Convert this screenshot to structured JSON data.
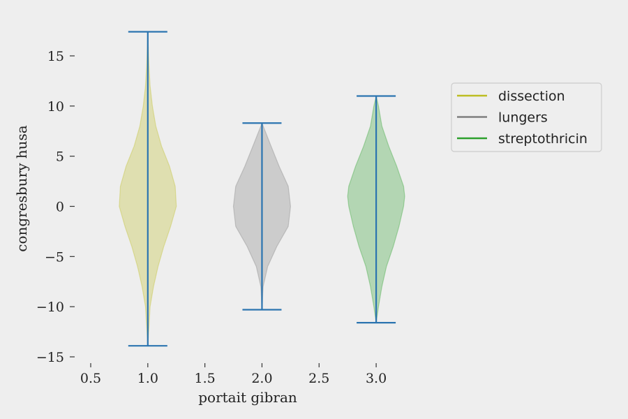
{
  "chart_data": {
    "type": "violin",
    "xlabel": "portait gibran",
    "ylabel": "congresbury husa",
    "xlim": [
      0.5,
      3.25
    ],
    "ylim": [
      -15,
      18
    ],
    "x_ticks": [
      "0.5",
      "1.0",
      "1.5",
      "2.0",
      "2.5",
      "3.0"
    ],
    "y_ticks": [
      "15",
      "10",
      "5",
      "0",
      "−5",
      "−10",
      "−15"
    ],
    "grid": false,
    "legend_position": "upper-right outside",
    "extrema_color": "#2b74b0",
    "series": [
      {
        "name": "dissection",
        "position": 1.0,
        "color": "#bcbd22",
        "min": -13.9,
        "max": 17.4,
        "profile": [
          [
            -13.9,
            0.0
          ],
          [
            -12,
            0.01
          ],
          [
            -10,
            0.02
          ],
          [
            -8,
            0.05
          ],
          [
            -6,
            0.09
          ],
          [
            -4,
            0.14
          ],
          [
            -2,
            0.2
          ],
          [
            0,
            0.25
          ],
          [
            2,
            0.24
          ],
          [
            4,
            0.19
          ],
          [
            6,
            0.12
          ],
          [
            8,
            0.07
          ],
          [
            10,
            0.04
          ],
          [
            12,
            0.02
          ],
          [
            14,
            0.01
          ],
          [
            17.4,
            0.0
          ]
        ]
      },
      {
        "name": "lungers",
        "position": 2.0,
        "color": "#7f7f7f",
        "min": -10.3,
        "max": 8.3,
        "profile": [
          [
            -10.3,
            0.0
          ],
          [
            -8,
            0.01
          ],
          [
            -6,
            0.05
          ],
          [
            -4,
            0.13
          ],
          [
            -2,
            0.23
          ],
          [
            0,
            0.25
          ],
          [
            2,
            0.23
          ],
          [
            4,
            0.15
          ],
          [
            6,
            0.08
          ],
          [
            8.3,
            0.0
          ]
        ]
      },
      {
        "name": "streptothricin",
        "position": 3.0,
        "color": "#2ca02c",
        "min": -11.6,
        "max": 11.0,
        "profile": [
          [
            -11.6,
            0.0
          ],
          [
            -10,
            0.02
          ],
          [
            -8,
            0.05
          ],
          [
            -6,
            0.09
          ],
          [
            -4,
            0.15
          ],
          [
            -2,
            0.2
          ],
          [
            0,
            0.24
          ],
          [
            1,
            0.25
          ],
          [
            2,
            0.24
          ],
          [
            4,
            0.18
          ],
          [
            6,
            0.11
          ],
          [
            8,
            0.05
          ],
          [
            10,
            0.02
          ],
          [
            11,
            0.0
          ]
        ]
      }
    ]
  }
}
